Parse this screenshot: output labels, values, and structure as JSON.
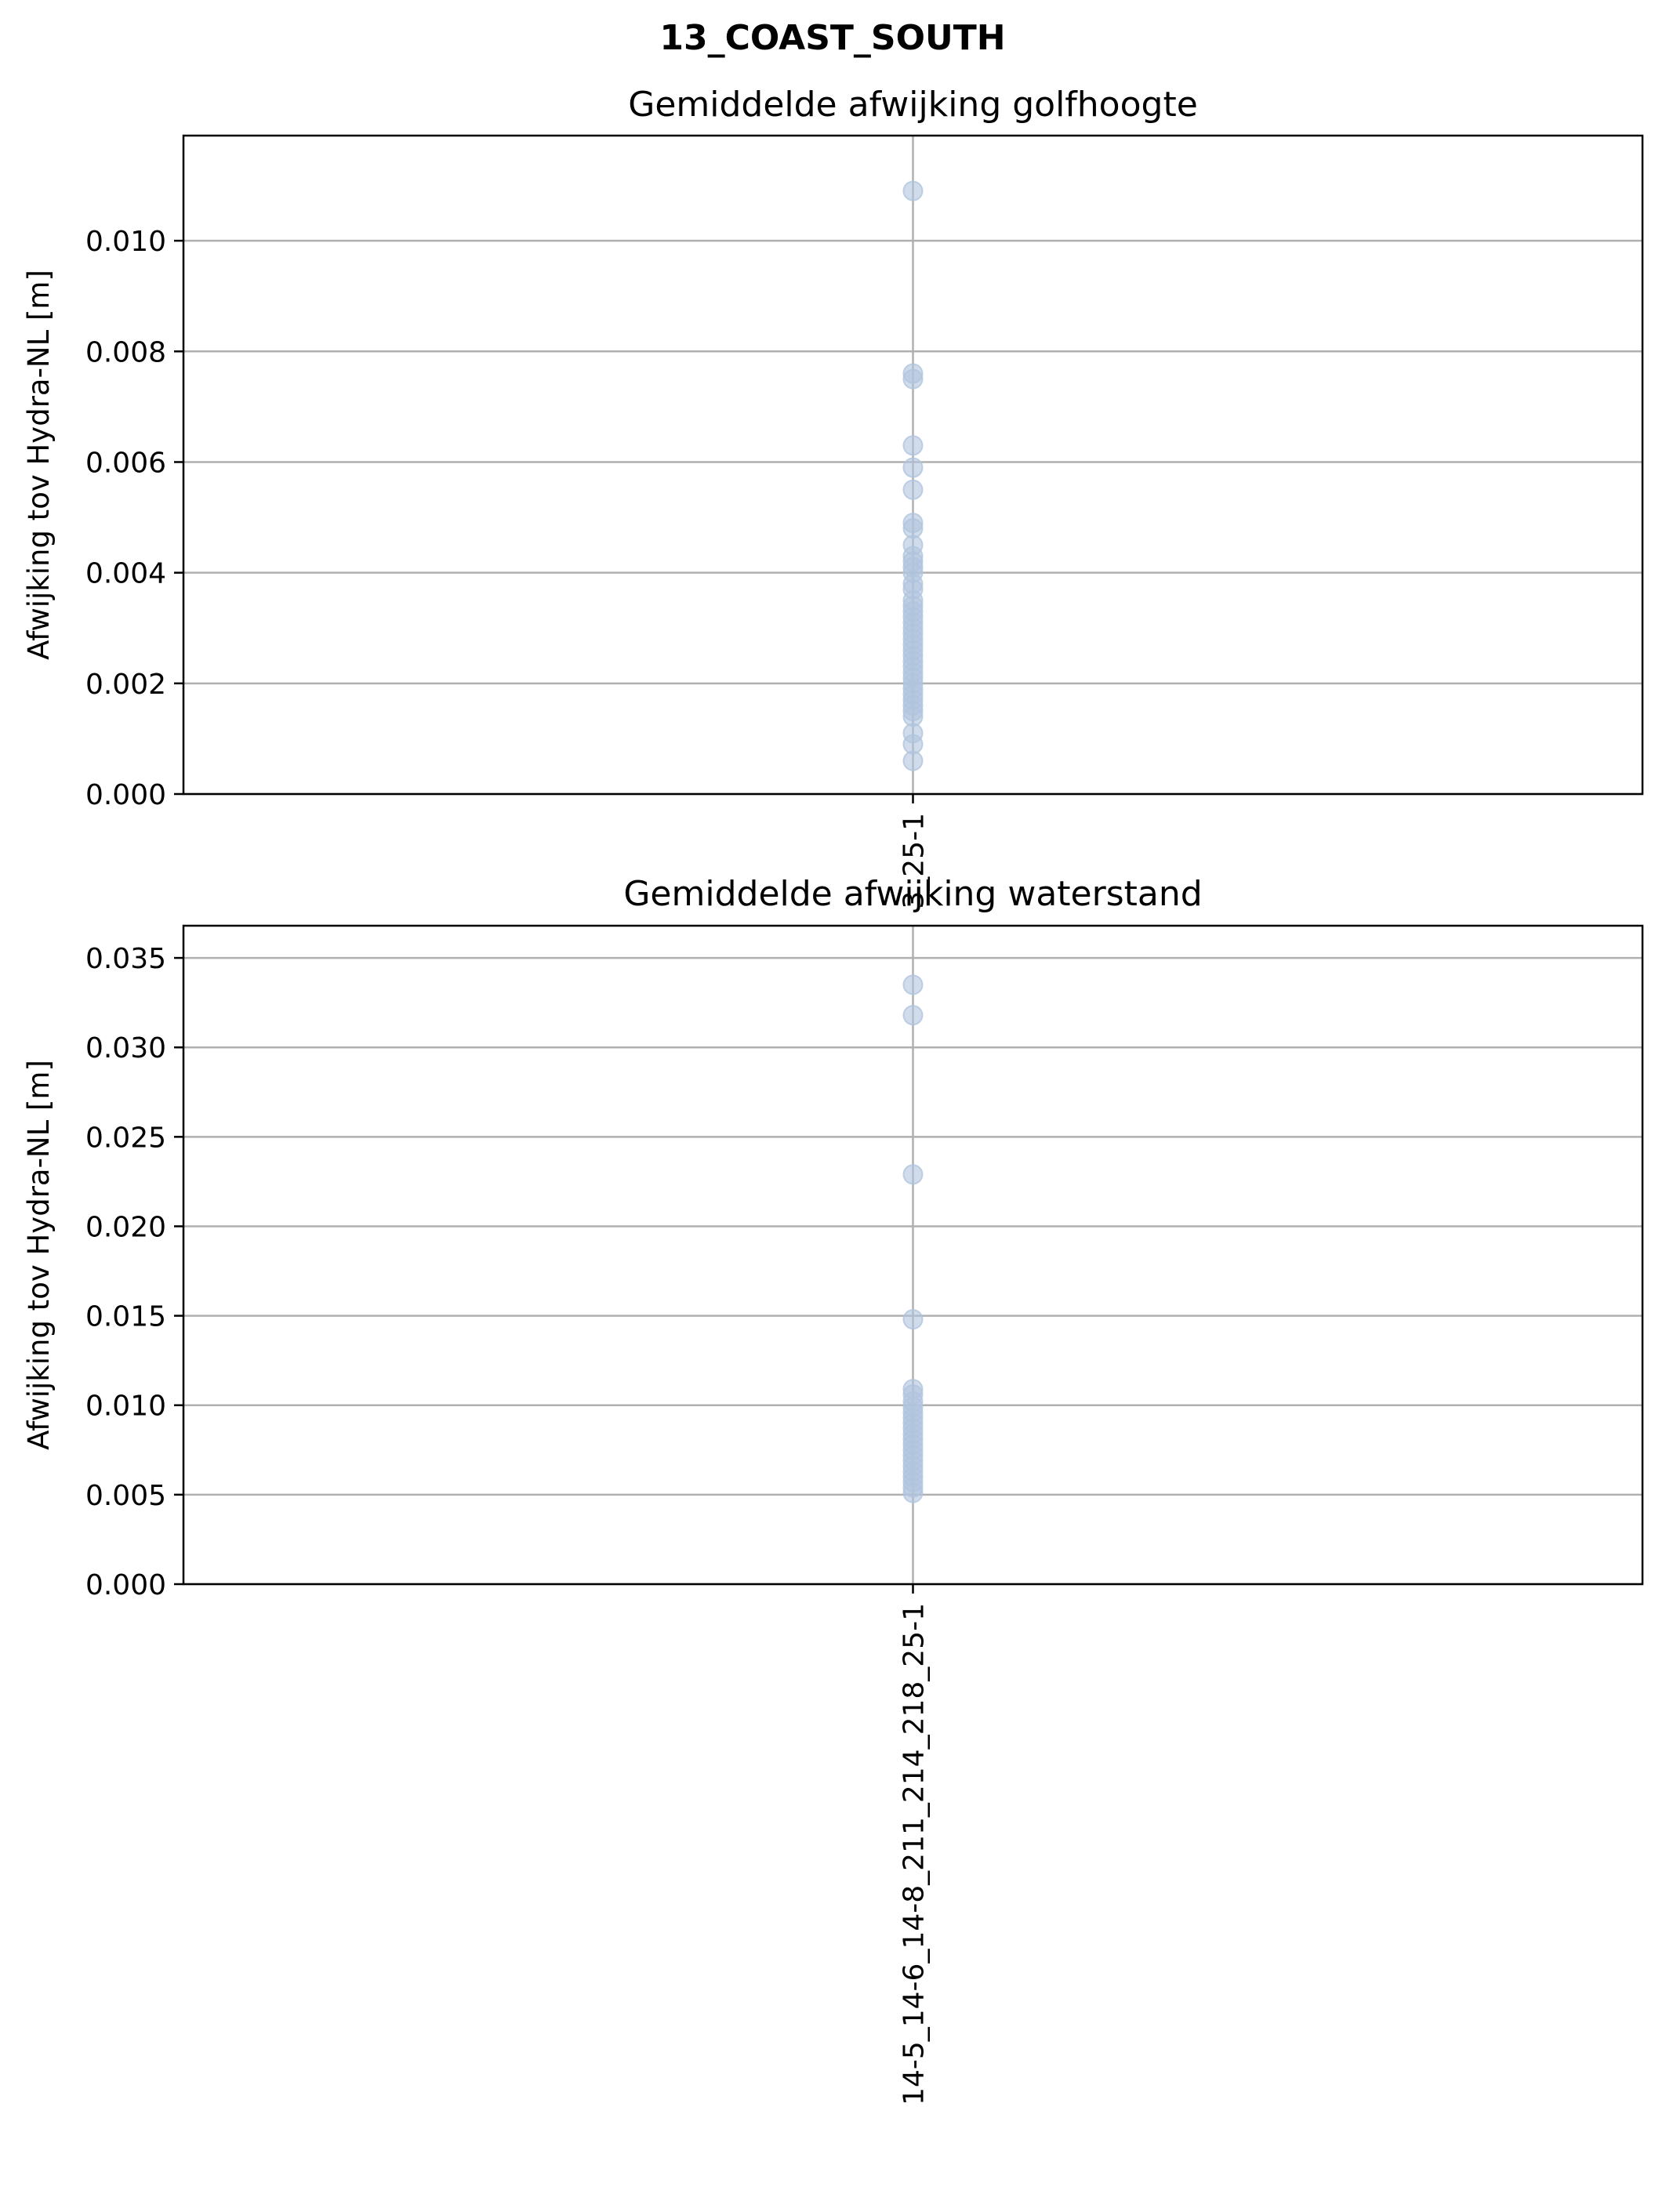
{
  "figure": {
    "suptitle": "13_COAST_SOUTH"
  },
  "chart_data": [
    {
      "type": "scatter",
      "title": "Gemiddelde afwijking golfhoogte",
      "xlabel": "",
      "ylabel": "Afwijking tov Hydra-NL [m]",
      "categories": [
        "3_25-1"
      ],
      "ylim": [
        0.0,
        0.0119
      ],
      "yticks": [
        0.0,
        0.002,
        0.004,
        0.006,
        0.008,
        0.01
      ],
      "ytick_labels": [
        "0.000",
        "0.002",
        "0.004",
        "0.006",
        "0.008",
        "0.010"
      ],
      "grid": true,
      "marker_color": "#b0c4de",
      "series": [
        {
          "category": "3_25-1",
          "values": [
            0.0109,
            0.0076,
            0.0075,
            0.0063,
            0.0059,
            0.0055,
            0.0049,
            0.0048,
            0.0045,
            0.0043,
            0.0042,
            0.0041,
            0.004,
            0.0038,
            0.0037,
            0.0035,
            0.0034,
            0.0033,
            0.0032,
            0.0031,
            0.003,
            0.0029,
            0.0028,
            0.0027,
            0.0026,
            0.0025,
            0.0024,
            0.0023,
            0.0022,
            0.0021,
            0.002,
            0.0019,
            0.0018,
            0.0017,
            0.0016,
            0.0015,
            0.0014,
            0.0011,
            0.0009,
            0.0006
          ]
        }
      ]
    },
    {
      "type": "scatter",
      "title": "Gemiddelde afwijking waterstand",
      "xlabel": "",
      "ylabel": "Afwijking tov Hydra-NL [m]",
      "categories": [
        "14-5_14-6_14-8_211_214_218_25-1"
      ],
      "ylim": [
        0.0,
        0.0368
      ],
      "yticks": [
        0.0,
        0.005,
        0.01,
        0.015,
        0.02,
        0.025,
        0.03,
        0.035
      ],
      "ytick_labels": [
        "0.000",
        "0.005",
        "0.010",
        "0.015",
        "0.020",
        "0.025",
        "0.030",
        "0.035"
      ],
      "grid": true,
      "marker_color": "#b0c4de",
      "series": [
        {
          "category": "14-5_14-6_14-8_211_214_218_25-1",
          "values": [
            0.0335,
            0.0318,
            0.0229,
            0.0148,
            0.0109,
            0.0106,
            0.0102,
            0.0099,
            0.0096,
            0.0093,
            0.009,
            0.0087,
            0.0084,
            0.0081,
            0.0078,
            0.0075,
            0.0072,
            0.0069,
            0.0066,
            0.0063,
            0.006,
            0.0057,
            0.0054,
            0.0051
          ]
        }
      ]
    }
  ]
}
